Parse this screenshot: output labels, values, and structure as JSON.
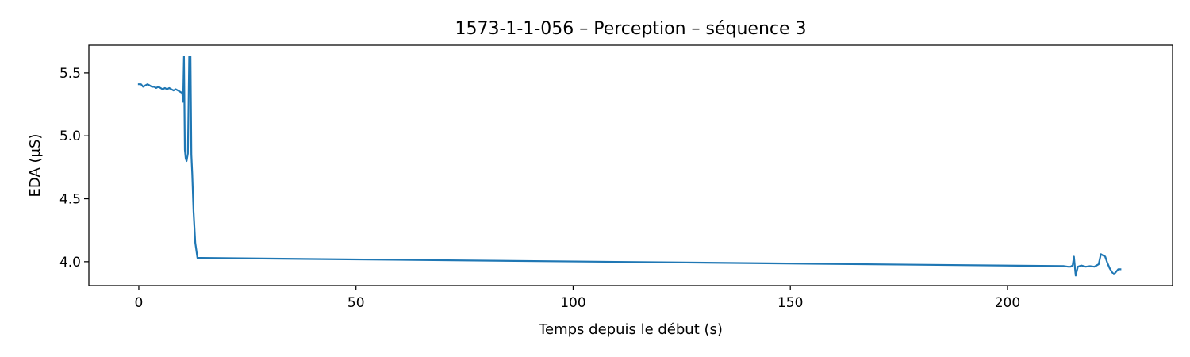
{
  "chart_data": {
    "type": "line",
    "title": "1573-1-1-056 – Perception – séquence 3",
    "xlabel": "Temps depuis le début (s)",
    "ylabel": "EDA (µS)",
    "xlim": [
      -11.5,
      238
    ],
    "ylim": [
      3.81,
      5.72
    ],
    "xticks": [
      0,
      50,
      100,
      150,
      200
    ],
    "yticks": [
      4.0,
      4.5,
      5.0,
      5.5
    ],
    "ytick_labels": [
      "4.0",
      "4.5",
      "5.0",
      "5.5"
    ],
    "grid": false,
    "line_color": "#1f77b4",
    "series": [
      {
        "x": [
          0,
          0.5,
          1.0,
          1.5,
          2.0,
          2.5,
          3.0,
          3.5,
          4.0,
          4.5,
          5.0,
          5.5,
          6.0,
          6.5,
          7.0,
          7.5,
          8.0,
          8.5,
          9.0,
          9.5,
          10.0,
          10.2,
          10.4,
          10.6,
          10.8,
          11.0,
          11.3,
          11.6,
          11.9,
          12.1,
          12.3,
          12.6,
          13.0,
          13.5,
          213.0,
          214.0,
          214.5,
          215.0,
          215.3,
          215.7,
          216.2,
          217.0,
          218.0,
          219.0,
          220.0,
          220.5,
          221.0,
          221.5,
          222.0,
          222.5,
          223.0,
          223.5,
          224.0,
          224.5,
          225.0,
          225.5,
          226.0
        ],
        "y": [
          5.41,
          5.41,
          5.39,
          5.4,
          5.41,
          5.4,
          5.39,
          5.39,
          5.38,
          5.39,
          5.38,
          5.37,
          5.38,
          5.37,
          5.38,
          5.37,
          5.36,
          5.37,
          5.36,
          5.35,
          5.34,
          5.27,
          5.63,
          4.89,
          4.82,
          4.8,
          4.86,
          5.63,
          5.63,
          4.85,
          4.7,
          4.4,
          4.15,
          4.03,
          3.965,
          3.96,
          3.96,
          3.97,
          4.04,
          3.89,
          3.96,
          3.97,
          3.96,
          3.965,
          3.96,
          3.97,
          3.98,
          4.06,
          4.05,
          4.04,
          3.99,
          3.95,
          3.92,
          3.9,
          3.92,
          3.94,
          3.94
        ]
      }
    ]
  }
}
